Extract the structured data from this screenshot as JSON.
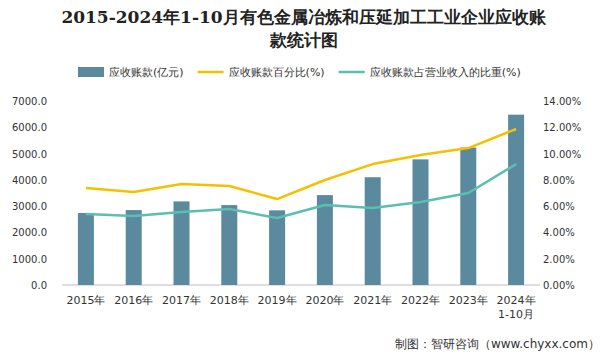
{
  "chart_data": {
    "type": "bar",
    "title": "2015-2024年1-10月有色金属冶炼和压延加工工业企业应收账款统计图",
    "categories": [
      "2015年",
      "2016年",
      "2017年",
      "2018年",
      "2019年",
      "2020年",
      "2021年",
      "2022年",
      "2023年",
      "2024年\n1-10月"
    ],
    "series": [
      {
        "name": "应收账款(亿元)",
        "type": "bar",
        "axis": "y",
        "color": "#5b8a9e",
        "values": [
          2740,
          2850,
          3180,
          3040,
          2840,
          3420,
          4100,
          4780,
          5230,
          6480
        ]
      },
      {
        "name": "应收账款百分比(%)",
        "type": "line",
        "axis": "y2",
        "color": "#f5c000",
        "values": [
          7.38,
          7.08,
          7.68,
          7.53,
          6.54,
          7.99,
          9.2,
          9.89,
          10.42,
          11.87
        ]
      },
      {
        "name": "应收账款占营业收入的比重(%)",
        "type": "line",
        "axis": "y2",
        "color": "#5bbfb0",
        "values": [
          5.4,
          5.25,
          5.55,
          5.78,
          5.1,
          6.09,
          5.86,
          6.32,
          7.0,
          9.2
        ]
      }
    ],
    "ylim": [
      0,
      7000
    ],
    "yticks": [
      {
        "value": 0,
        "label": "0.0"
      },
      {
        "value": 1000,
        "label": "1000.0"
      },
      {
        "value": 2000,
        "label": "2000.0"
      },
      {
        "value": 3000,
        "label": "3000.0"
      },
      {
        "value": 4000,
        "label": "4000.0"
      },
      {
        "value": 5000,
        "label": "5000.0"
      },
      {
        "value": 6000,
        "label": "6000.0"
      },
      {
        "value": 7000,
        "label": "7000.0"
      }
    ],
    "y2lim": [
      0,
      14
    ],
    "y2ticks": [
      {
        "value": 0,
        "label": "0.00%"
      },
      {
        "value": 2,
        "label": "2.00%"
      },
      {
        "value": 4,
        "label": "4.00%"
      },
      {
        "value": 6,
        "label": "6.00%"
      },
      {
        "value": 8,
        "label": "8.00%"
      },
      {
        "value": 10,
        "label": "10.00%"
      },
      {
        "value": 12,
        "label": "12.00%"
      },
      {
        "value": 14,
        "label": "14.00%"
      }
    ],
    "grid": false,
    "legend": "top",
    "annotations": [
      "制图：智研咨询（www.chyxx.com）"
    ]
  }
}
